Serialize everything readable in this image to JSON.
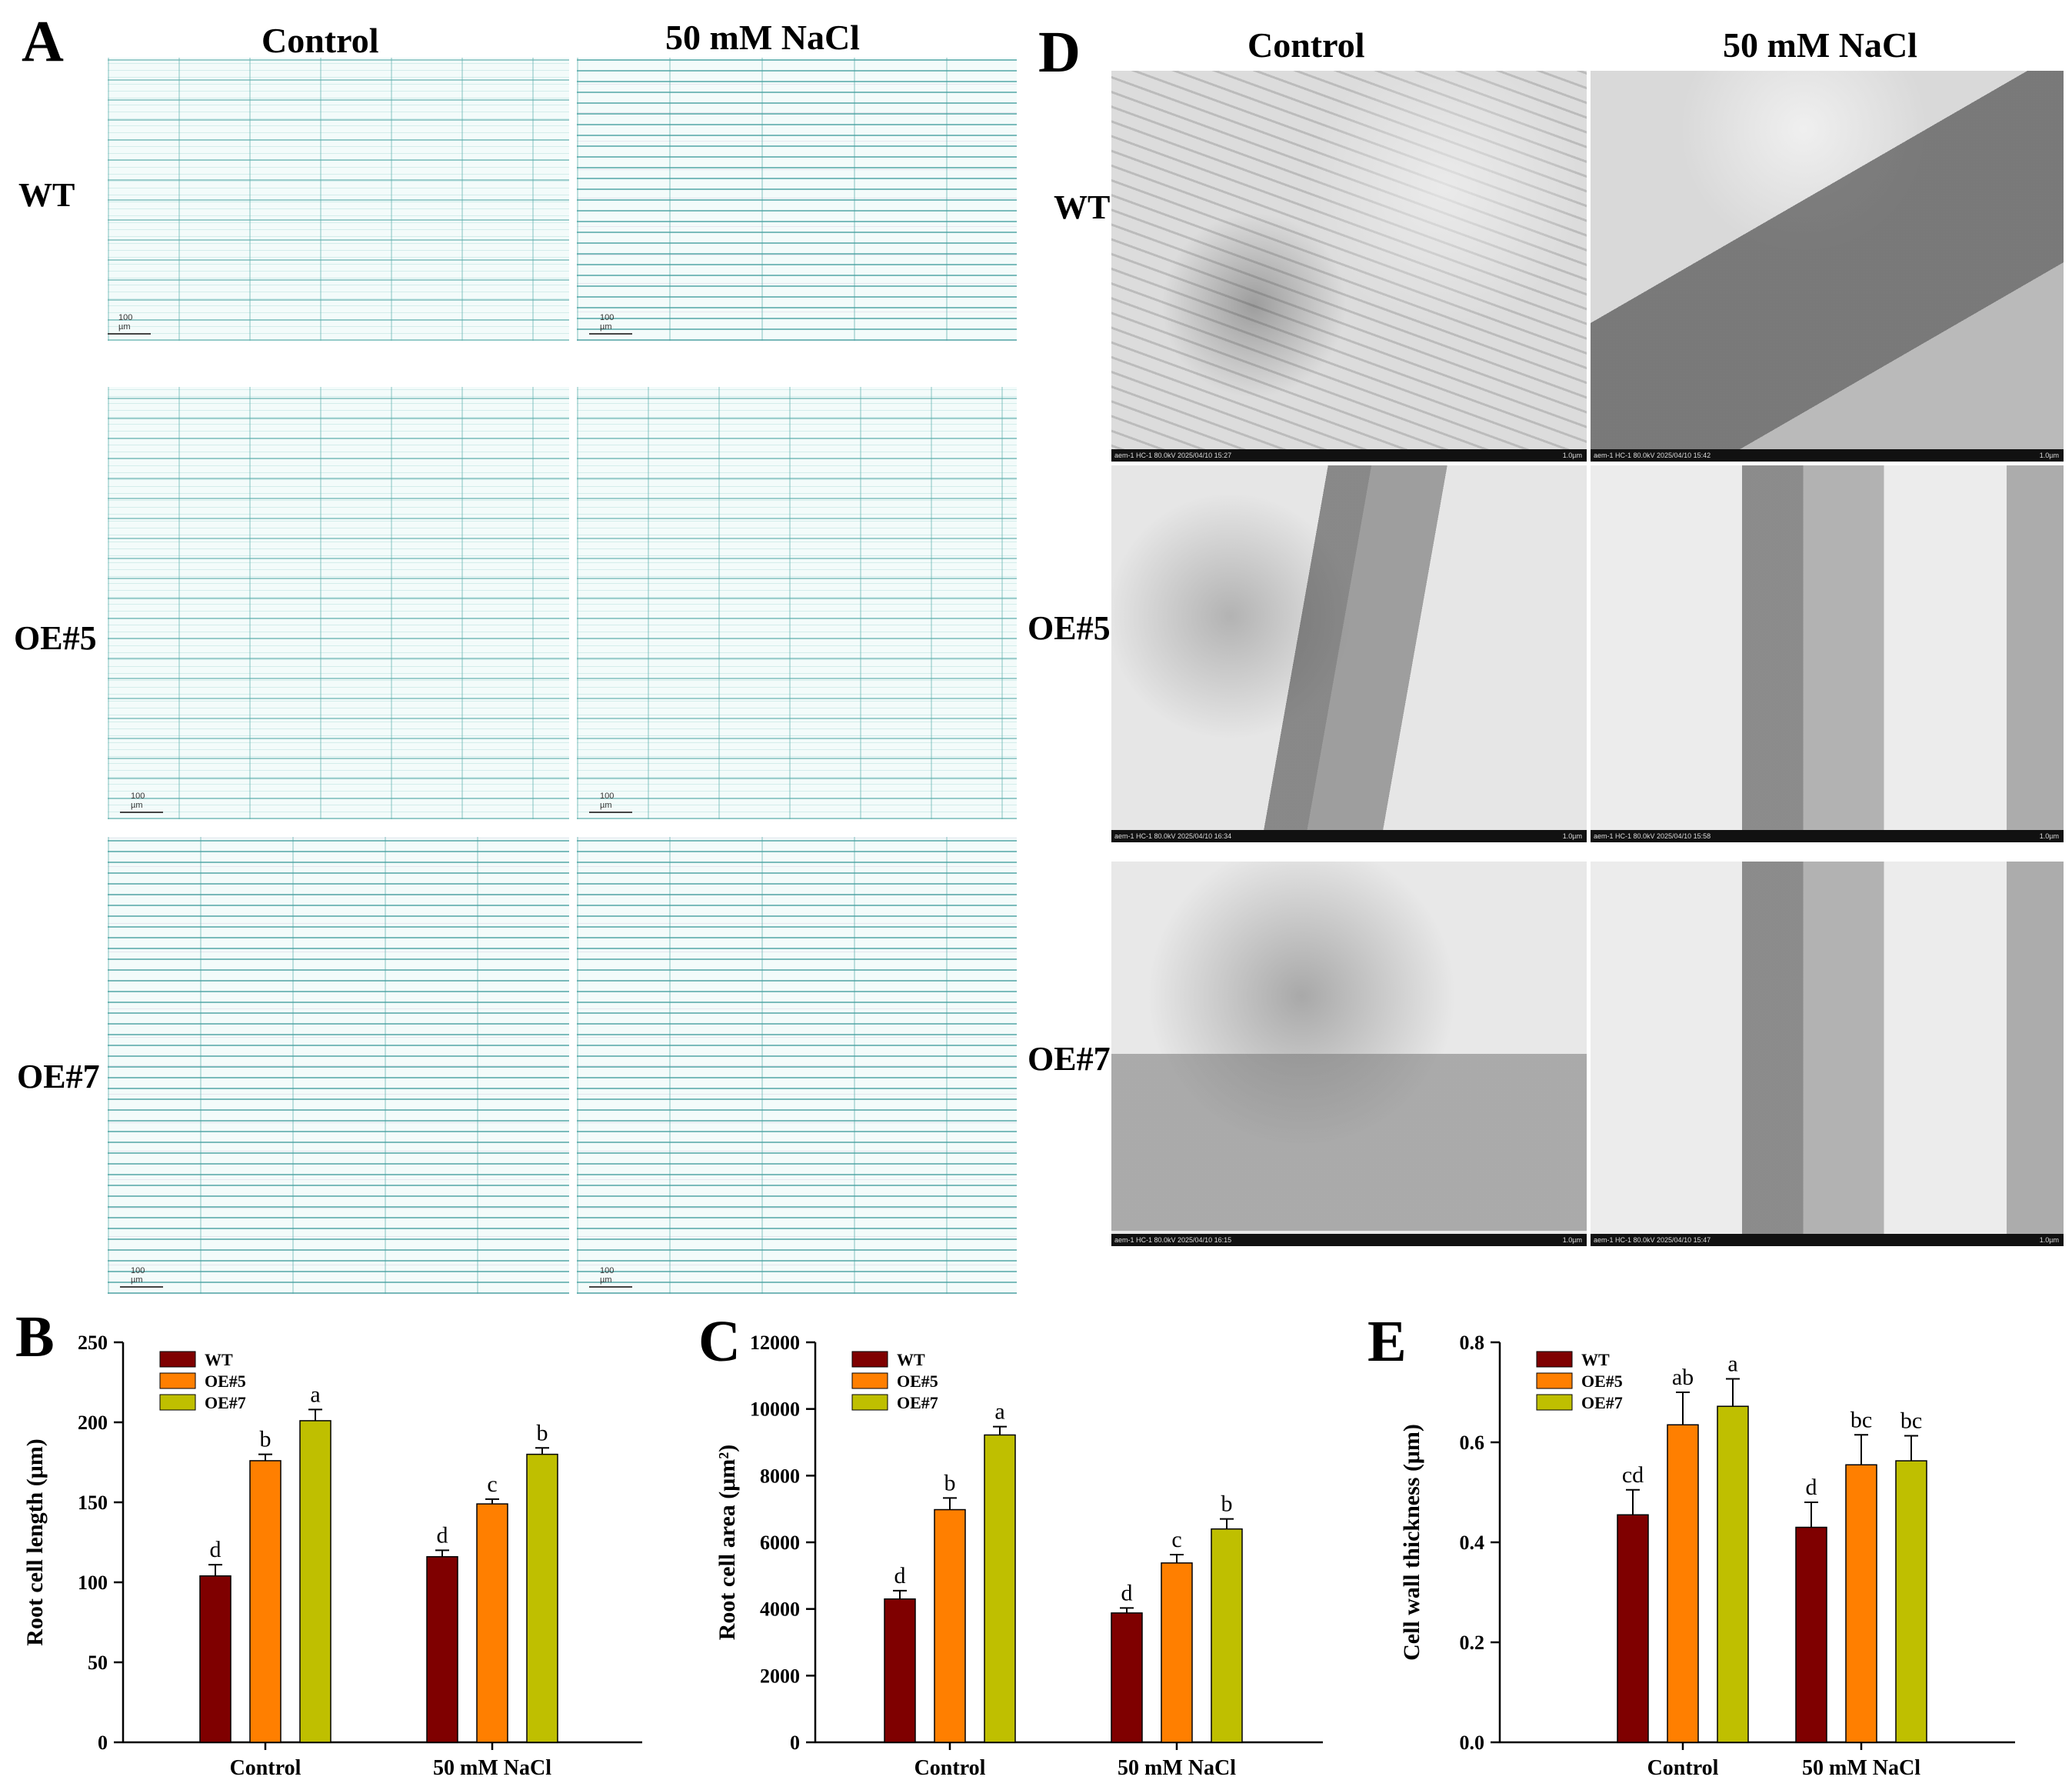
{
  "panels": {
    "A": {
      "letter": "A",
      "col_labels": [
        "Control",
        "50 mM NaCl"
      ],
      "row_labels": [
        "WT",
        "OE#5",
        "OE#7"
      ],
      "scale_label": "100 µm"
    },
    "D": {
      "letter": "D",
      "col_labels": [
        "Control",
        "50 mM NaCl"
      ],
      "row_labels": [
        "WT",
        "OE#5",
        "OE#7"
      ],
      "tem_footers": [
        "aem-1 HC-1 80.0kV 2025/04/10 15:27",
        "aem-1 HC-1 80.0kV 2025/04/10 15:42",
        "aem-1 HC-1 80.0kV 2025/04/10 16:34",
        "aem-1 HC-1 80.0kV 2025/04/10 15:58",
        "aem-1 HC-1 80.0kV 2025/04/10 16:15",
        "aem-1 HC-1 80.0kV 2025/04/10 15:47"
      ],
      "tem_scale": "1.0µm"
    }
  },
  "colors": {
    "WT": "#7f0000",
    "OE#5": "#ff7f00",
    "OE#7": "#bfbf00"
  },
  "chart_data": [
    {
      "panel": "B",
      "type": "bar",
      "categories": [
        "Control",
        "50 mM NaCl"
      ],
      "series": [
        {
          "name": "WT",
          "values": [
            104,
            116
          ],
          "errors": [
            7,
            4
          ],
          "letters": [
            "d",
            "d"
          ]
        },
        {
          "name": "OE#5",
          "values": [
            176,
            149
          ],
          "errors": [
            4,
            3
          ],
          "letters": [
            "b",
            "c"
          ]
        },
        {
          "name": "OE#7",
          "values": [
            201,
            180
          ],
          "errors": [
            7,
            4
          ],
          "letters": [
            "a",
            "b"
          ]
        }
      ],
      "ylabel": "Root cell length (μm)",
      "ylim": [
        0,
        250
      ],
      "yticks": [
        "0",
        "50",
        "100",
        "150",
        "200",
        "250"
      ],
      "legend": "top-left"
    },
    {
      "panel": "C",
      "type": "bar",
      "categories": [
        "Control",
        "50 mM NaCl"
      ],
      "series": [
        {
          "name": "WT",
          "values": [
            4300,
            3880
          ],
          "errors": [
            250,
            150
          ],
          "letters": [
            "d",
            "d"
          ]
        },
        {
          "name": "OE#5",
          "values": [
            6980,
            5380
          ],
          "errors": [
            350,
            250
          ],
          "letters": [
            "b",
            "c"
          ]
        },
        {
          "name": "OE#7",
          "values": [
            9220,
            6400
          ],
          "errors": [
            250,
            300
          ],
          "letters": [
            "a",
            "b"
          ]
        }
      ],
      "ylabel": "Root cell area (μm²)",
      "ylim": [
        0,
        12000
      ],
      "yticks": [
        "0",
        "2000",
        "4000",
        "6000",
        "8000",
        "10000",
        "12000"
      ],
      "legend": "top-left"
    },
    {
      "panel": "E",
      "type": "bar",
      "categories": [
        "Control",
        "50 mM NaCl"
      ],
      "series": [
        {
          "name": "WT",
          "values": [
            0.455,
            0.43
          ],
          "errors": [
            0.05,
            0.05
          ],
          "letters": [
            "cd",
            "d"
          ]
        },
        {
          "name": "OE#5",
          "values": [
            0.635,
            0.555
          ],
          "errors": [
            0.065,
            0.06
          ],
          "letters": [
            "ab",
            "bc"
          ]
        },
        {
          "name": "OE#7",
          "values": [
            0.672,
            0.563
          ],
          "errors": [
            0.055,
            0.05
          ],
          "letters": [
            "a",
            "bc"
          ]
        }
      ],
      "ylabel": "Cell wall thickness (μm)",
      "ylim": [
        0,
        0.8
      ],
      "yticks": [
        "0.0",
        "0.2",
        "0.4",
        "0.6",
        "0.8"
      ],
      "legend": "top-left"
    }
  ]
}
